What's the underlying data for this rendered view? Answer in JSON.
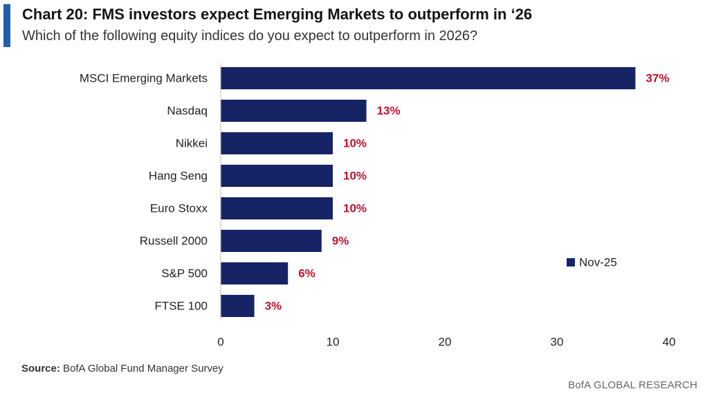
{
  "header": {
    "title": "Chart 20: FMS investors expect Emerging Markets to outperform in ‘26",
    "subtitle": "Which of the following equity indices do you expect to outperform in 2026?"
  },
  "footer": {
    "source_label": "Source:",
    "source_text": "BofA Global Fund Manager Survey",
    "branding": "BofA GLOBAL RESEARCH"
  },
  "colors": {
    "bar": "#162466",
    "value_label": "#c8102e",
    "accent": "#1f5fae"
  },
  "chart_data": {
    "type": "bar",
    "orientation": "horizontal",
    "categories": [
      "MSCI Emerging Markets",
      "Nasdaq",
      "Nikkei",
      "Hang Seng",
      "Euro Stoxx",
      "Russell 2000",
      "S&P 500",
      "FTSE 100"
    ],
    "series": [
      {
        "name": "Nov-25",
        "values": [
          37,
          13,
          10,
          10,
          10,
          9,
          6,
          3
        ],
        "labels": [
          "37%",
          "13%",
          "10%",
          "10%",
          "10%",
          "9%",
          "6%",
          "3%"
        ]
      }
    ],
    "xlim": [
      0,
      40
    ],
    "xticks": [
      0,
      10,
      20,
      30,
      40
    ],
    "grid": false,
    "legend_position": "right"
  }
}
